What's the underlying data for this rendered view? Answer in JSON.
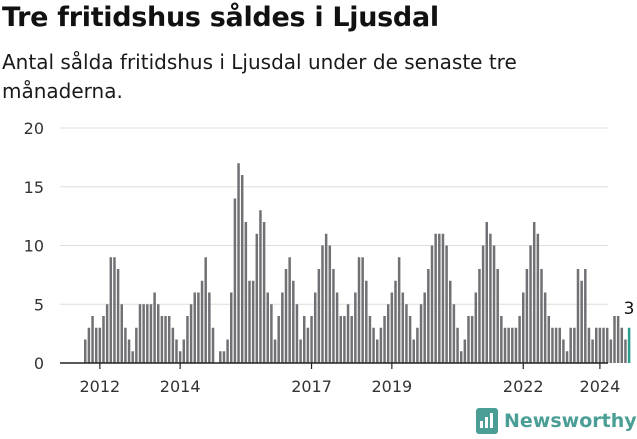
{
  "title": "Tre fritidshus såldes i Ljusdal",
  "subtitle": "Antal sålda fritidshus i Ljusdal under de senaste tre månaderna.",
  "brand": "Newsworthy",
  "colors": {
    "bar": "#717075",
    "highlight": "#2a9d8f",
    "grid": "#dddddd",
    "axis": "#222222",
    "brand": "#4a9e96"
  },
  "chart_data": {
    "type": "bar",
    "title": "Tre fritidshus såldes i Ljusdal",
    "subtitle": "Antal sålda fritidshus i Ljusdal under de senaste tre månaderna.",
    "x_tick_labels": [
      "2012",
      "2014",
      "2017",
      "2019",
      "2022",
      "2024"
    ],
    "x_tick_month_index": [
      4,
      26,
      62,
      84,
      120,
      141
    ],
    "y_ticks": [
      0,
      5,
      10,
      15,
      20
    ],
    "ylim": [
      0,
      20
    ],
    "grid": true,
    "last_value_label": "3",
    "values": [
      2,
      3,
      4,
      3,
      3,
      4,
      5,
      9,
      9,
      8,
      5,
      3,
      2,
      1,
      3,
      5,
      5,
      5,
      5,
      6,
      5,
      4,
      4,
      4,
      3,
      2,
      1,
      2,
      4,
      5,
      6,
      6,
      7,
      9,
      6,
      3,
      0,
      1,
      1,
      2,
      6,
      14,
      17,
      16,
      12,
      7,
      7,
      11,
      13,
      12,
      6,
      5,
      2,
      4,
      6,
      8,
      9,
      7,
      5,
      2,
      4,
      3,
      4,
      6,
      8,
      10,
      11,
      10,
      8,
      6,
      4,
      4,
      5,
      4,
      6,
      9,
      9,
      7,
      4,
      3,
      2,
      3,
      4,
      5,
      6,
      7,
      9,
      6,
      5,
      4,
      2,
      3,
      5,
      6,
      8,
      10,
      11,
      11,
      11,
      10,
      7,
      5,
      3,
      1,
      2,
      4,
      4,
      6,
      8,
      10,
      12,
      11,
      10,
      8,
      4,
      3,
      3,
      3,
      3,
      4,
      6,
      8,
      10,
      12,
      11,
      8,
      6,
      4,
      3,
      3,
      3,
      2,
      1,
      3,
      3,
      8,
      7,
      8,
      3,
      2,
      3,
      3,
      3,
      3,
      2,
      4,
      4,
      3,
      2,
      3
    ]
  }
}
